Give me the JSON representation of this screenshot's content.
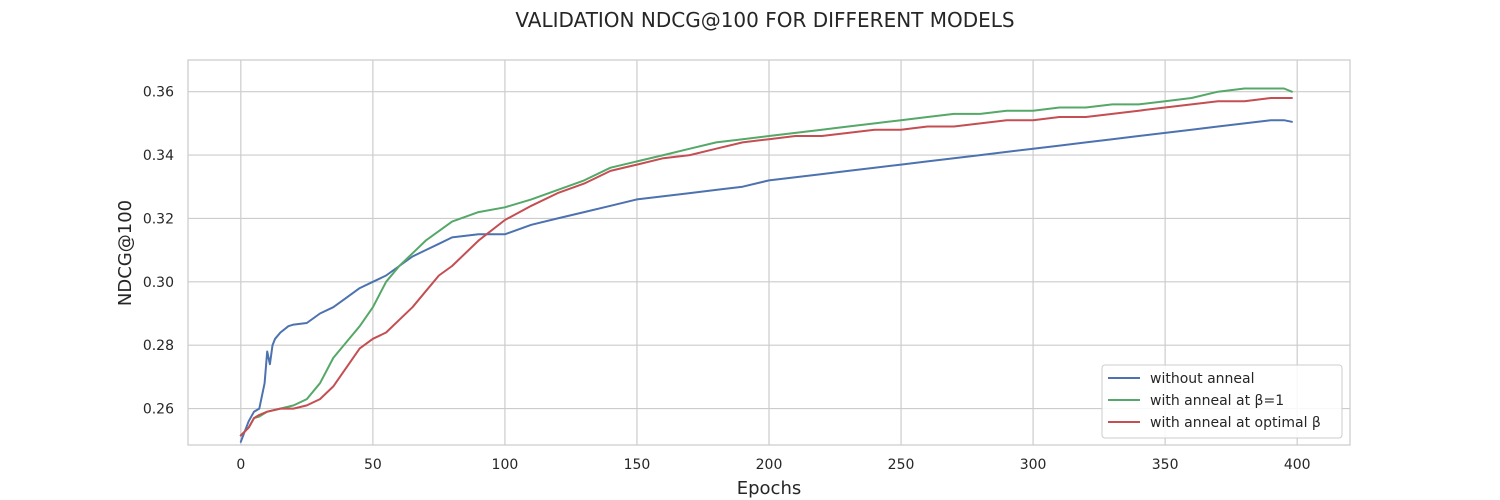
{
  "chart_data": {
    "type": "line",
    "title": "VALIDATION NDCG@100 FOR DIFFERENT MODELS",
    "xlabel": "Epochs",
    "ylabel": "NDCG@100",
    "xlim": [
      -20,
      420
    ],
    "ylim": [
      0.2485,
      0.37
    ],
    "xticks": [
      0,
      50,
      100,
      150,
      200,
      250,
      300,
      350,
      400
    ],
    "xtick_labels": [
      "0",
      "50",
      "100",
      "150",
      "200",
      "250",
      "300",
      "350",
      "400"
    ],
    "yticks": [
      0.26,
      0.28,
      0.3,
      0.32,
      0.34,
      0.36
    ],
    "ytick_labels": [
      "0.26",
      "0.28",
      "0.30",
      "0.32",
      "0.34",
      "0.36"
    ],
    "grid": true,
    "legend_position": "lower-right",
    "series": [
      {
        "name": "without anneal",
        "color": "#4c72b0",
        "x": [
          0,
          3,
          5,
          7,
          9,
          10,
          11,
          12,
          13,
          15,
          18,
          20,
          25,
          30,
          35,
          40,
          45,
          50,
          55,
          60,
          65,
          70,
          75,
          80,
          90,
          100,
          110,
          120,
          130,
          140,
          150,
          160,
          170,
          180,
          190,
          200,
          210,
          220,
          230,
          240,
          250,
          260,
          270,
          280,
          290,
          300,
          310,
          320,
          330,
          340,
          350,
          360,
          370,
          380,
          390,
          395,
          398
        ],
        "values": [
          0.2495,
          0.256,
          0.259,
          0.26,
          0.268,
          0.278,
          0.274,
          0.28,
          0.282,
          0.284,
          0.286,
          0.2865,
          0.287,
          0.29,
          0.292,
          0.295,
          0.298,
          0.3,
          0.302,
          0.305,
          0.308,
          0.31,
          0.312,
          0.314,
          0.315,
          0.315,
          0.318,
          0.32,
          0.322,
          0.324,
          0.326,
          0.327,
          0.328,
          0.329,
          0.33,
          0.332,
          0.333,
          0.334,
          0.335,
          0.336,
          0.337,
          0.338,
          0.339,
          0.34,
          0.341,
          0.342,
          0.343,
          0.344,
          0.345,
          0.346,
          0.347,
          0.348,
          0.349,
          0.35,
          0.351,
          0.351,
          0.3505
        ]
      },
      {
        "name": "with anneal at β=1",
        "color": "#55a868",
        "x": [
          0,
          3,
          5,
          7,
          10,
          15,
          20,
          25,
          30,
          35,
          40,
          45,
          50,
          55,
          60,
          65,
          70,
          75,
          80,
          90,
          100,
          110,
          120,
          130,
          140,
          150,
          160,
          170,
          180,
          190,
          200,
          210,
          220,
          230,
          240,
          250,
          260,
          270,
          280,
          290,
          300,
          310,
          320,
          330,
          340,
          350,
          360,
          370,
          380,
          390,
          395,
          398
        ],
        "values": [
          0.2515,
          0.254,
          0.257,
          0.2575,
          0.259,
          0.26,
          0.261,
          0.263,
          0.268,
          0.276,
          0.281,
          0.286,
          0.292,
          0.3,
          0.305,
          0.309,
          0.313,
          0.316,
          0.319,
          0.322,
          0.3235,
          0.326,
          0.329,
          0.332,
          0.336,
          0.338,
          0.34,
          0.342,
          0.344,
          0.345,
          0.346,
          0.347,
          0.348,
          0.349,
          0.35,
          0.351,
          0.352,
          0.353,
          0.353,
          0.354,
          0.354,
          0.355,
          0.355,
          0.356,
          0.356,
          0.357,
          0.358,
          0.36,
          0.361,
          0.361,
          0.361,
          0.36
        ]
      },
      {
        "name": "with anneal at optimal β",
        "color": "#c44e52",
        "x": [
          0,
          3,
          5,
          7,
          10,
          15,
          20,
          25,
          30,
          35,
          40,
          45,
          50,
          55,
          60,
          65,
          70,
          75,
          80,
          90,
          100,
          110,
          120,
          130,
          140,
          150,
          160,
          170,
          180,
          190,
          200,
          210,
          220,
          230,
          240,
          250,
          260,
          270,
          280,
          290,
          300,
          310,
          320,
          330,
          340,
          350,
          360,
          370,
          380,
          390,
          395,
          398
        ],
        "values": [
          0.2515,
          0.254,
          0.257,
          0.258,
          0.259,
          0.26,
          0.26,
          0.261,
          0.263,
          0.267,
          0.273,
          0.279,
          0.282,
          0.284,
          0.288,
          0.292,
          0.297,
          0.302,
          0.305,
          0.313,
          0.3195,
          0.324,
          0.328,
          0.331,
          0.335,
          0.337,
          0.339,
          0.34,
          0.342,
          0.344,
          0.345,
          0.346,
          0.346,
          0.347,
          0.348,
          0.348,
          0.349,
          0.349,
          0.35,
          0.351,
          0.351,
          0.352,
          0.352,
          0.353,
          0.354,
          0.355,
          0.356,
          0.357,
          0.357,
          0.358,
          0.358,
          0.358
        ]
      }
    ]
  }
}
